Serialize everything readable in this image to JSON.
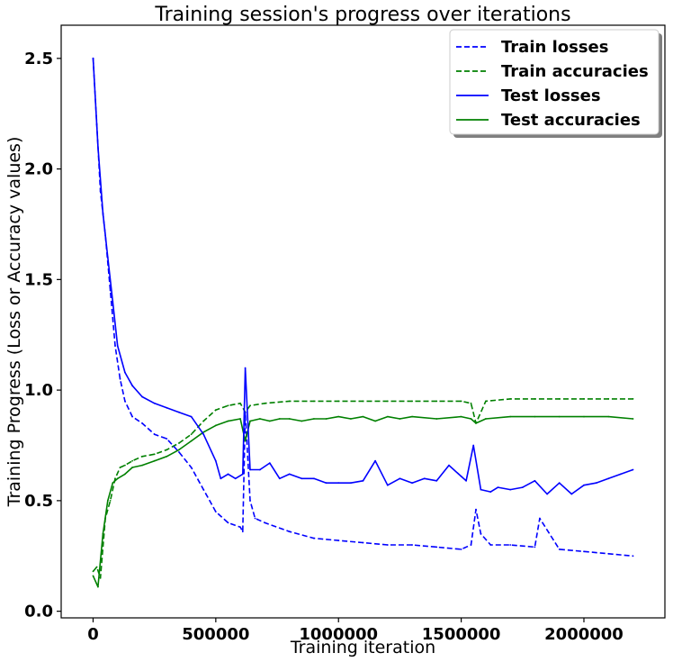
{
  "chart_data": {
    "type": "line",
    "title": "Training session's progress over iterations",
    "xlabel": "Training iteration",
    "ylabel": "Training Progress (Loss or Accuracy values)",
    "xlim": [
      -130000,
      2330000
    ],
    "ylim": [
      -0.03,
      2.65
    ],
    "xticks": [
      0,
      500000,
      1000000,
      1500000,
      2000000
    ],
    "xtick_labels": [
      "0",
      "500000",
      "1000000",
      "1500000",
      "2000000"
    ],
    "yticks": [
      0.0,
      0.5,
      1.0,
      1.5,
      2.0,
      2.5
    ],
    "ytick_labels": [
      "0.0",
      "0.5",
      "1.0",
      "1.5",
      "2.0",
      "2.5"
    ],
    "grid": false,
    "legend_position": "top-right",
    "series": [
      {
        "name": "Train losses",
        "color": "#0000ff",
        "style": "dashed",
        "x": [
          0,
          15000,
          30000,
          50000,
          70000,
          90000,
          110000,
          130000,
          160000,
          200000,
          250000,
          300000,
          350000,
          400000,
          450000,
          500000,
          550000,
          600000,
          610000,
          620000,
          640000,
          660000,
          700000,
          800000,
          900000,
          1000000,
          1100000,
          1200000,
          1300000,
          1400000,
          1500000,
          1540000,
          1560000,
          1580000,
          1620000,
          1700000,
          1800000,
          1820000,
          1900000,
          2000000,
          2100000,
          2200000
        ],
        "values": [
          2.5,
          2.2,
          1.9,
          1.7,
          1.45,
          1.2,
          1.05,
          0.95,
          0.88,
          0.85,
          0.8,
          0.78,
          0.72,
          0.65,
          0.55,
          0.45,
          0.4,
          0.38,
          0.36,
          0.9,
          0.5,
          0.42,
          0.4,
          0.36,
          0.33,
          0.32,
          0.31,
          0.3,
          0.3,
          0.29,
          0.28,
          0.3,
          0.46,
          0.35,
          0.3,
          0.3,
          0.29,
          0.42,
          0.28,
          0.27,
          0.26,
          0.25
        ]
      },
      {
        "name": "Train accuracies",
        "color": "#008000",
        "style": "dashed",
        "x": [
          0,
          15000,
          30000,
          50000,
          70000,
          90000,
          110000,
          130000,
          160000,
          200000,
          250000,
          300000,
          350000,
          400000,
          450000,
          500000,
          550000,
          600000,
          620000,
          640000,
          700000,
          800000,
          900000,
          1000000,
          1100000,
          1200000,
          1300000,
          1400000,
          1500000,
          1540000,
          1560000,
          1600000,
          1700000,
          1800000,
          1900000,
          2000000,
          2100000,
          2200000
        ],
        "values": [
          0.18,
          0.2,
          0.15,
          0.42,
          0.5,
          0.6,
          0.65,
          0.66,
          0.68,
          0.7,
          0.71,
          0.73,
          0.76,
          0.8,
          0.86,
          0.91,
          0.93,
          0.94,
          0.9,
          0.93,
          0.94,
          0.95,
          0.95,
          0.95,
          0.95,
          0.95,
          0.95,
          0.95,
          0.95,
          0.94,
          0.85,
          0.95,
          0.96,
          0.96,
          0.96,
          0.96,
          0.96,
          0.96
        ]
      },
      {
        "name": "Test losses",
        "color": "#0000ff",
        "style": "solid",
        "x": [
          0,
          20000,
          40000,
          60000,
          80000,
          100000,
          130000,
          160000,
          200000,
          250000,
          300000,
          350000,
          400000,
          450000,
          500000,
          520000,
          550000,
          580000,
          610000,
          620000,
          640000,
          680000,
          720000,
          760000,
          800000,
          850000,
          900000,
          950000,
          1000000,
          1050000,
          1100000,
          1150000,
          1200000,
          1250000,
          1300000,
          1350000,
          1400000,
          1450000,
          1500000,
          1520000,
          1550000,
          1580000,
          1620000,
          1650000,
          1700000,
          1750000,
          1800000,
          1850000,
          1900000,
          1950000,
          2000000,
          2050000,
          2100000,
          2150000,
          2200000
        ],
        "values": [
          2.5,
          2.1,
          1.8,
          1.6,
          1.4,
          1.2,
          1.08,
          1.02,
          0.97,
          0.94,
          0.92,
          0.9,
          0.88,
          0.8,
          0.68,
          0.6,
          0.62,
          0.6,
          0.62,
          1.1,
          0.64,
          0.64,
          0.67,
          0.6,
          0.62,
          0.6,
          0.6,
          0.58,
          0.58,
          0.58,
          0.59,
          0.68,
          0.57,
          0.6,
          0.58,
          0.6,
          0.59,
          0.66,
          0.61,
          0.59,
          0.75,
          0.55,
          0.54,
          0.56,
          0.55,
          0.56,
          0.59,
          0.53,
          0.58,
          0.53,
          0.57,
          0.58,
          0.6,
          0.62,
          0.64
        ]
      },
      {
        "name": "Test accuracies",
        "color": "#008000",
        "style": "solid",
        "x": [
          0,
          20000,
          40000,
          60000,
          80000,
          100000,
          130000,
          160000,
          200000,
          250000,
          300000,
          350000,
          400000,
          450000,
          500000,
          550000,
          600000,
          620000,
          640000,
          680000,
          720000,
          760000,
          800000,
          850000,
          900000,
          950000,
          1000000,
          1050000,
          1100000,
          1150000,
          1200000,
          1250000,
          1300000,
          1400000,
          1500000,
          1540000,
          1560000,
          1600000,
          1700000,
          1800000,
          1900000,
          2000000,
          2100000,
          2200000
        ],
        "values": [
          0.16,
          0.11,
          0.35,
          0.5,
          0.58,
          0.6,
          0.62,
          0.65,
          0.66,
          0.68,
          0.7,
          0.73,
          0.77,
          0.81,
          0.84,
          0.86,
          0.87,
          0.77,
          0.86,
          0.87,
          0.86,
          0.87,
          0.87,
          0.86,
          0.87,
          0.87,
          0.88,
          0.87,
          0.88,
          0.86,
          0.88,
          0.87,
          0.88,
          0.87,
          0.88,
          0.87,
          0.85,
          0.87,
          0.88,
          0.88,
          0.88,
          0.88,
          0.88,
          0.87
        ]
      }
    ]
  }
}
